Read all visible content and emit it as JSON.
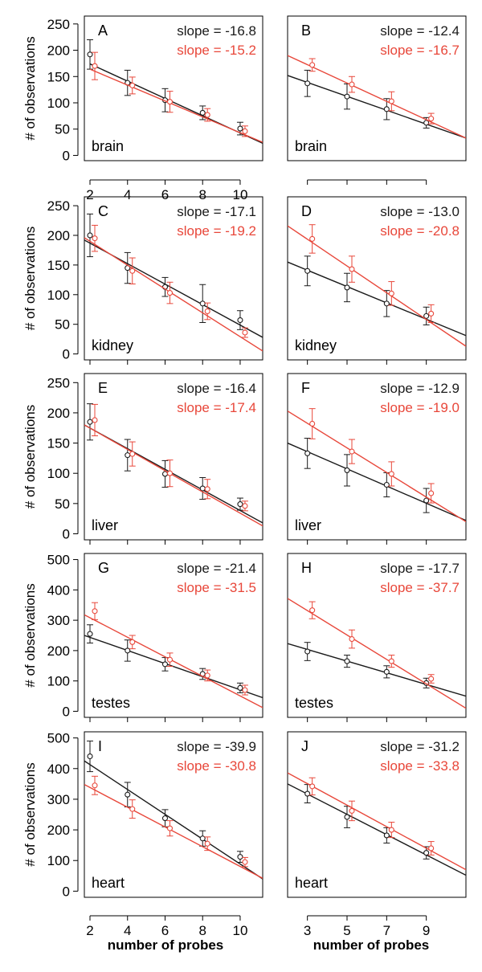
{
  "colors": {
    "series_black": "#1a1a1a",
    "series_red": "#e8473a",
    "axis": "#000000"
  },
  "figure": {
    "ylabel": "# of observations",
    "xlabels": [
      "number of probes",
      "number of probes"
    ]
  },
  "chart_data": [
    {
      "panel": "A",
      "type": "scatter",
      "tissue": "brain",
      "row": 0,
      "col": 0,
      "xlim": [
        1.7,
        11.2
      ],
      "ylim": [
        -10,
        265
      ],
      "xticks": [
        "2",
        "4",
        "6",
        "8",
        "10"
      ],
      "xtick_values": [
        2,
        4,
        6,
        8,
        10
      ],
      "yticks": [
        "0",
        "50",
        "100",
        "150",
        "200",
        "250"
      ],
      "ytick_values": [
        0,
        50,
        100,
        150,
        200,
        250
      ],
      "slopes": [
        "slope = -16.8",
        "slope = -15.2"
      ],
      "series": [
        {
          "color": "black",
          "x": [
            2,
            4,
            6,
            8,
            10
          ],
          "y": [
            192,
            138,
            105,
            81,
            51
          ],
          "err": [
            28,
            24,
            22,
            13,
            12
          ],
          "fit": [
            [
              2,
              174
            ],
            [
              11.2,
              23
            ]
          ]
        },
        {
          "color": "red",
          "x": [
            2,
            4,
            6,
            8,
            10
          ],
          "y": [
            170,
            133,
            102,
            77,
            46
          ],
          "err": [
            26,
            16,
            20,
            12,
            10
          ],
          "fit": [
            [
              2,
              164
            ],
            [
              11.2,
              25
            ]
          ]
        }
      ]
    },
    {
      "panel": "B",
      "type": "scatter",
      "tissue": "brain",
      "row": 0,
      "col": 1,
      "xlim": [
        2,
        11
      ],
      "ylim": [
        -10,
        265
      ],
      "xticks": [
        "",
        "",
        "",
        ""
      ],
      "xtick_values": [
        3,
        5,
        7,
        9
      ],
      "yticks": [],
      "ytick_values": [],
      "slopes": [
        "slope = -12.4",
        "slope = -16.7"
      ],
      "series": [
        {
          "color": "black",
          "x": [
            3,
            5,
            7,
            9
          ],
          "y": [
            137,
            112,
            88,
            62
          ],
          "err": [
            25,
            24,
            20,
            10
          ],
          "fit": [
            [
              2,
              152
            ],
            [
              11,
              33
            ]
          ]
        },
        {
          "color": "red",
          "x": [
            3,
            5,
            7,
            9
          ],
          "y": [
            172,
            135,
            103,
            70
          ],
          "err": [
            12,
            15,
            18,
            10
          ],
          "fit": [
            [
              2,
              190
            ],
            [
              11,
              33
            ]
          ]
        }
      ]
    },
    {
      "panel": "C",
      "type": "scatter",
      "tissue": "kidney",
      "row": 1,
      "col": 0,
      "xlim": [
        1.7,
        11.2
      ],
      "ylim": [
        -10,
        265
      ],
      "xticks": [
        "",
        "",
        "",
        "",
        ""
      ],
      "xtick_values": [
        2,
        4,
        6,
        8,
        10
      ],
      "yticks": [
        "0",
        "50",
        "100",
        "150",
        "200",
        "250"
      ],
      "ytick_values": [
        0,
        50,
        100,
        150,
        200,
        250
      ],
      "slopes": [
        "slope = -17.1",
        "slope = -19.2"
      ],
      "series": [
        {
          "color": "black",
          "x": [
            2,
            4,
            6,
            8,
            10
          ],
          "y": [
            200,
            145,
            113,
            85,
            57
          ],
          "err": [
            36,
            26,
            16,
            32,
            16
          ],
          "fit": [
            [
              1.7,
              192
            ],
            [
              11.2,
              28
            ]
          ]
        },
        {
          "color": "red",
          "x": [
            2,
            4,
            6,
            8,
            10
          ],
          "y": [
            195,
            140,
            103,
            72,
            36
          ],
          "err": [
            22,
            22,
            18,
            14,
            8
          ],
          "fit": [
            [
              1.7,
              196
            ],
            [
              11.2,
              5
            ]
          ]
        }
      ]
    },
    {
      "panel": "D",
      "type": "scatter",
      "tissue": "kidney",
      "row": 1,
      "col": 1,
      "xlim": [
        2,
        11
      ],
      "ylim": [
        -10,
        265
      ],
      "xticks": [
        "",
        "",
        "",
        ""
      ],
      "xtick_values": [
        3,
        5,
        7,
        9
      ],
      "yticks": [],
      "ytick_values": [],
      "slopes": [
        "slope = -13.0",
        "slope = -20.8"
      ],
      "series": [
        {
          "color": "black",
          "x": [
            3,
            5,
            7,
            9
          ],
          "y": [
            140,
            112,
            85,
            64
          ],
          "err": [
            25,
            24,
            22,
            15
          ],
          "fit": [
            [
              2,
              155
            ],
            [
              11,
              31
            ]
          ]
        },
        {
          "color": "red",
          "x": [
            3,
            5,
            7,
            9
          ],
          "y": [
            194,
            143,
            102,
            68
          ],
          "err": [
            24,
            22,
            20,
            15
          ],
          "fit": [
            [
              2,
              216
            ],
            [
              11,
              13
            ]
          ]
        }
      ]
    },
    {
      "panel": "E",
      "type": "scatter",
      "tissue": "liver",
      "row": 2,
      "col": 0,
      "xlim": [
        1.7,
        11.2
      ],
      "ylim": [
        -10,
        265
      ],
      "xticks": [
        "",
        "",
        "",
        "",
        ""
      ],
      "xtick_values": [
        2,
        4,
        6,
        8,
        10
      ],
      "yticks": [
        "0",
        "50",
        "100",
        "150",
        "200",
        "250"
      ],
      "ytick_values": [
        0,
        50,
        100,
        150,
        200,
        250
      ],
      "slopes": [
        "slope = -16.4",
        "slope = -17.4"
      ],
      "series": [
        {
          "color": "black",
          "x": [
            2,
            4,
            6,
            8,
            10
          ],
          "y": [
            185,
            130,
            99,
            75,
            49
          ],
          "err": [
            30,
            26,
            22,
            18,
            10
          ],
          "fit": [
            [
              1.7,
              180
            ],
            [
              11.2,
              18
            ]
          ]
        },
        {
          "color": "red",
          "x": [
            2,
            4,
            6,
            8,
            10
          ],
          "y": [
            188,
            132,
            100,
            74,
            46
          ],
          "err": [
            26,
            20,
            22,
            16,
            8
          ],
          "fit": [
            [
              1.7,
              180
            ],
            [
              11.2,
              13
            ]
          ]
        }
      ]
    },
    {
      "panel": "F",
      "type": "scatter",
      "tissue": "liver",
      "row": 2,
      "col": 1,
      "xlim": [
        2,
        11
      ],
      "ylim": [
        -10,
        265
      ],
      "xticks": [
        "",
        "",
        "",
        ""
      ],
      "xtick_values": [
        3,
        5,
        7,
        9
      ],
      "yticks": [],
      "ytick_values": [],
      "slopes": [
        "slope = -12.9",
        "slope = -19.0"
      ],
      "series": [
        {
          "color": "black",
          "x": [
            3,
            5,
            7,
            9
          ],
          "y": [
            133,
            105,
            81,
            55
          ],
          "err": [
            25,
            26,
            20,
            20
          ],
          "fit": [
            [
              2,
              150
            ],
            [
              11,
              22
            ]
          ]
        },
        {
          "color": "red",
          "x": [
            3,
            5,
            7,
            9
          ],
          "y": [
            182,
            136,
            99,
            67
          ],
          "err": [
            25,
            20,
            20,
            16
          ],
          "fit": [
            [
              2,
              203
            ],
            [
              11,
              20
            ]
          ]
        }
      ]
    },
    {
      "panel": "G",
      "type": "scatter",
      "tissue": "testes",
      "row": 3,
      "col": 0,
      "xlim": [
        1.7,
        11.2
      ],
      "ylim": [
        -20,
        520
      ],
      "xticks": [
        "",
        "",
        "",
        "",
        ""
      ],
      "xtick_values": [
        2,
        4,
        6,
        8,
        10
      ],
      "yticks": [
        "0",
        "100",
        "200",
        "300",
        "400",
        "500"
      ],
      "ytick_values": [
        0,
        100,
        200,
        300,
        400,
        500
      ],
      "slopes": [
        "slope = -21.4",
        "slope = -31.5"
      ],
      "series": [
        {
          "color": "black",
          "x": [
            2,
            4,
            6,
            8,
            10
          ],
          "y": [
            255,
            200,
            155,
            123,
            77
          ],
          "err": [
            30,
            35,
            22,
            18,
            16
          ],
          "fit": [
            [
              1.7,
              250
            ],
            [
              11.2,
              45
            ]
          ]
        },
        {
          "color": "red",
          "x": [
            2,
            4,
            6,
            8,
            10
          ],
          "y": [
            330,
            228,
            170,
            118,
            70
          ],
          "err": [
            28,
            22,
            22,
            18,
            16
          ],
          "fit": [
            [
              1.7,
              318
            ],
            [
              11.2,
              12
            ]
          ]
        }
      ]
    },
    {
      "panel": "H",
      "type": "scatter",
      "tissue": "testes",
      "row": 3,
      "col": 1,
      "xlim": [
        2,
        11
      ],
      "ylim": [
        -20,
        520
      ],
      "xticks": [
        "",
        "",
        "",
        ""
      ],
      "xtick_values": [
        3,
        5,
        7,
        9
      ],
      "yticks": [],
      "ytick_values": [],
      "slopes": [
        "slope = -17.7",
        "slope = -37.7"
      ],
      "series": [
        {
          "color": "black",
          "x": [
            3,
            5,
            7,
            9
          ],
          "y": [
            197,
            165,
            130,
            93
          ],
          "err": [
            30,
            20,
            20,
            16
          ],
          "fit": [
            [
              2,
              223
            ],
            [
              11,
              50
            ]
          ]
        },
        {
          "color": "red",
          "x": [
            3,
            5,
            7,
            9
          ],
          "y": [
            333,
            238,
            165,
            107
          ],
          "err": [
            28,
            30,
            20,
            14
          ],
          "fit": [
            [
              2,
              372
            ],
            [
              11,
              10
            ]
          ]
        }
      ]
    },
    {
      "panel": "I",
      "type": "scatter",
      "tissue": "heart",
      "row": 4,
      "col": 0,
      "xlim": [
        1.7,
        11.2
      ],
      "ylim": [
        -20,
        520
      ],
      "xticks": [
        "2",
        "4",
        "6",
        "8",
        "10"
      ],
      "xtick_values": [
        2,
        4,
        6,
        8,
        10
      ],
      "yticks": [
        "0",
        "100",
        "200",
        "300",
        "400",
        "500"
      ],
      "ytick_values": [
        0,
        100,
        200,
        300,
        400,
        500
      ],
      "slopes": [
        "slope = -39.9",
        "slope = -30.8"
      ],
      "series": [
        {
          "color": "black",
          "x": [
            2,
            4,
            6,
            8,
            10
          ],
          "y": [
            440,
            315,
            238,
            172,
            112
          ],
          "err": [
            50,
            40,
            28,
            25,
            18
          ],
          "fit": [
            [
              1.7,
              425
            ],
            [
              11.2,
              40
            ]
          ]
        },
        {
          "color": "red",
          "x": [
            2,
            4,
            6,
            8,
            10
          ],
          "y": [
            345,
            268,
            205,
            155,
            95
          ],
          "err": [
            30,
            30,
            25,
            22,
            15
          ],
          "fit": [
            [
              1.7,
              348
            ],
            [
              11.2,
              42
            ]
          ]
        }
      ]
    },
    {
      "panel": "J",
      "type": "scatter",
      "tissue": "heart",
      "row": 4,
      "col": 1,
      "xlim": [
        2,
        11
      ],
      "ylim": [
        -20,
        520
      ],
      "xticks": [
        "3",
        "5",
        "7",
        "9"
      ],
      "xtick_values": [
        3,
        5,
        7,
        9
      ],
      "yticks": [],
      "ytick_values": [],
      "slopes": [
        "slope = -31.2",
        "slope = -33.8"
      ],
      "series": [
        {
          "color": "black",
          "x": [
            3,
            5,
            7,
            9
          ],
          "y": [
            318,
            242,
            182,
            125
          ],
          "err": [
            30,
            35,
            25,
            20
          ],
          "fit": [
            [
              2,
              350
            ],
            [
              11,
              52
            ]
          ]
        },
        {
          "color": "red",
          "x": [
            3,
            5,
            7,
            9
          ],
          "y": [
            342,
            262,
            200,
            140
          ],
          "err": [
            28,
            32,
            25,
            22
          ],
          "fit": [
            [
              2,
              386
            ],
            [
              11,
              70
            ]
          ]
        }
      ]
    }
  ]
}
